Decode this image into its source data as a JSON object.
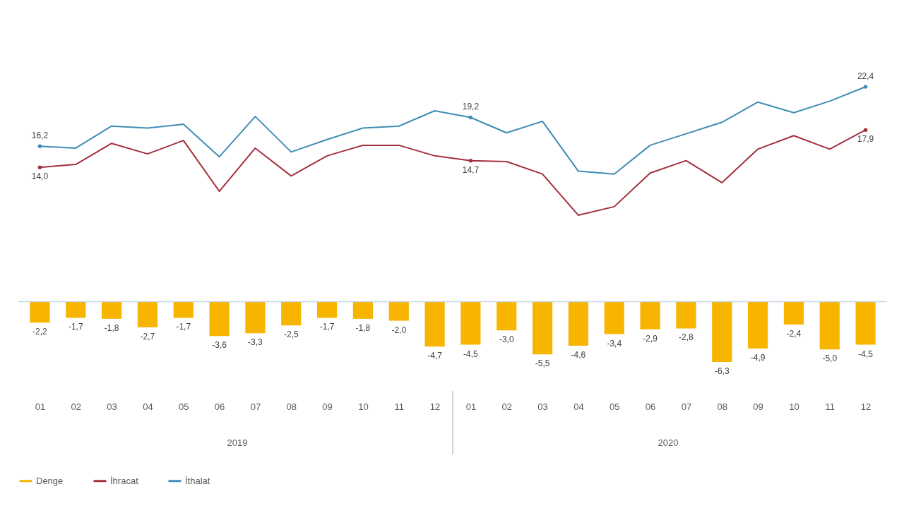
{
  "chart_data": {
    "type": "bar",
    "categories": [
      "01",
      "02",
      "03",
      "04",
      "05",
      "06",
      "07",
      "08",
      "09",
      "10",
      "11",
      "12",
      "01",
      "02",
      "03",
      "04",
      "05",
      "06",
      "07",
      "08",
      "09",
      "10",
      "11",
      "12"
    ],
    "annotations": [
      "2019",
      "2020"
    ],
    "legend": "bottom",
    "tick_labels": "x",
    "ref_lines": [
      {
        "axis": "y",
        "value": 0,
        "color": "#c9d7e6"
      }
    ],
    "series": [
      {
        "name": "Denge",
        "color": "#f7b500",
        "values": [
          -2.2,
          -1.7,
          -1.8,
          -2.7,
          -1.7,
          -3.6,
          -3.3,
          -2.5,
          -1.7,
          -1.8,
          -2.0,
          -4.7,
          -4.5,
          -3.0,
          -5.5,
          -4.6,
          -3.4,
          -2.9,
          -2.8,
          -6.3,
          -4.9,
          -2.4,
          -5.0,
          -4.5
        ],
        "value_labels": [
          "-2,2",
          "-1,7",
          "-1,8",
          "-2,7",
          "-1,7",
          "-3,6",
          "-3,3",
          "-2,5",
          "-1,7",
          "-1,8",
          "-2,0",
          "-4,7",
          "-4,5",
          "-3,0",
          "-5,5",
          "-4,6",
          "-3,4",
          "-2,9",
          "-2,8",
          "-6,3",
          "-4,9",
          "-2,4",
          "-5,0",
          "-4,5"
        ]
      },
      {
        "name": "İhracat",
        "type": "line",
        "color": "#a3303e",
        "values": [
          14.0,
          14.3,
          16.5,
          15.4,
          16.8,
          11.5,
          16.0,
          13.1,
          15.2,
          16.3,
          16.3,
          15.2,
          14.7,
          14.6,
          13.3,
          9.0,
          9.9,
          13.4,
          14.7,
          12.4,
          15.9,
          17.3,
          15.9,
          17.9
        ],
        "value_labels": [
          "14,0",
          null,
          null,
          null,
          null,
          null,
          null,
          null,
          null,
          null,
          null,
          null,
          "14,7",
          null,
          null,
          null,
          null,
          null,
          null,
          null,
          null,
          null,
          null,
          "17,9"
        ]
      },
      {
        "name": "İthalat",
        "type": "line",
        "color": "#3f8db3",
        "values": [
          16.2,
          16.0,
          18.3,
          18.1,
          18.5,
          15.1,
          19.3,
          15.6,
          16.9,
          18.1,
          18.3,
          19.9,
          19.2,
          17.6,
          18.8,
          13.6,
          13.3,
          16.3,
          17.5,
          18.7,
          20.8,
          19.7,
          20.9,
          22.4
        ],
        "value_labels": [
          "16,2",
          null,
          null,
          null,
          null,
          null,
          null,
          null,
          null,
          null,
          null,
          null,
          "19,2",
          null,
          null,
          null,
          null,
          null,
          null,
          null,
          null,
          null,
          null,
          "22,4"
        ]
      }
    ]
  }
}
